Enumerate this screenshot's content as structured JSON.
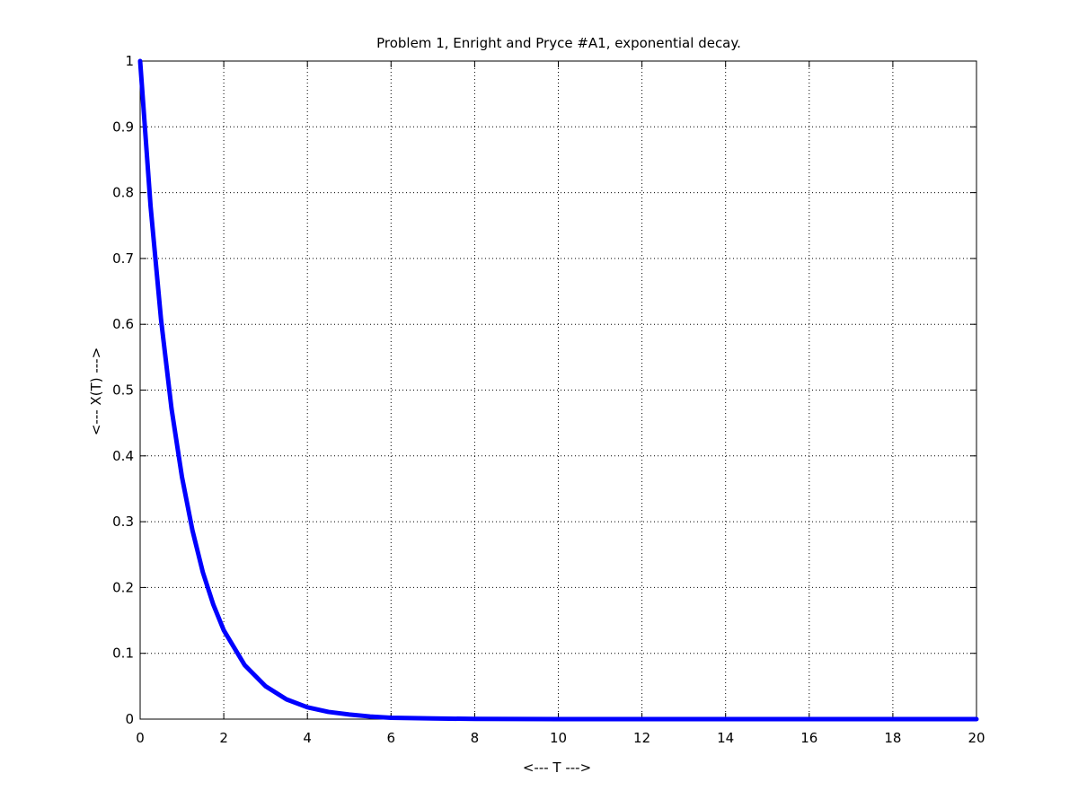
{
  "chart_data": {
    "type": "line",
    "title": "Problem 1, Enright and Pryce #A1, exponential decay.",
    "xlabel": "<--- T --->",
    "ylabel": "<--- X(T) --->",
    "xlim": [
      0,
      20
    ],
    "ylim": [
      0,
      1
    ],
    "xticks": [
      "0",
      "2",
      "4",
      "6",
      "8",
      "10",
      "12",
      "14",
      "16",
      "18",
      "20"
    ],
    "yticks": [
      "0",
      "0.1",
      "0.2",
      "0.3",
      "0.4",
      "0.5",
      "0.6",
      "0.7",
      "0.8",
      "0.9",
      "1"
    ],
    "grid": true,
    "series": [
      {
        "color": "#0000ff",
        "x": [
          0,
          0.25,
          0.5,
          0.75,
          1,
          1.25,
          1.5,
          1.75,
          2,
          2.5,
          3,
          3.5,
          4,
          4.5,
          5,
          5.5,
          6,
          7,
          8,
          9,
          10,
          12,
          14,
          16,
          18,
          20
        ],
        "y": [
          1,
          0.779,
          0.607,
          0.472,
          0.368,
          0.287,
          0.223,
          0.174,
          0.135,
          0.082,
          0.05,
          0.03,
          0.018,
          0.011,
          0.007,
          0.004,
          0.002,
          0.001,
          0.0003,
          0.0001,
          0,
          0,
          0,
          0,
          0,
          0
        ]
      }
    ]
  }
}
